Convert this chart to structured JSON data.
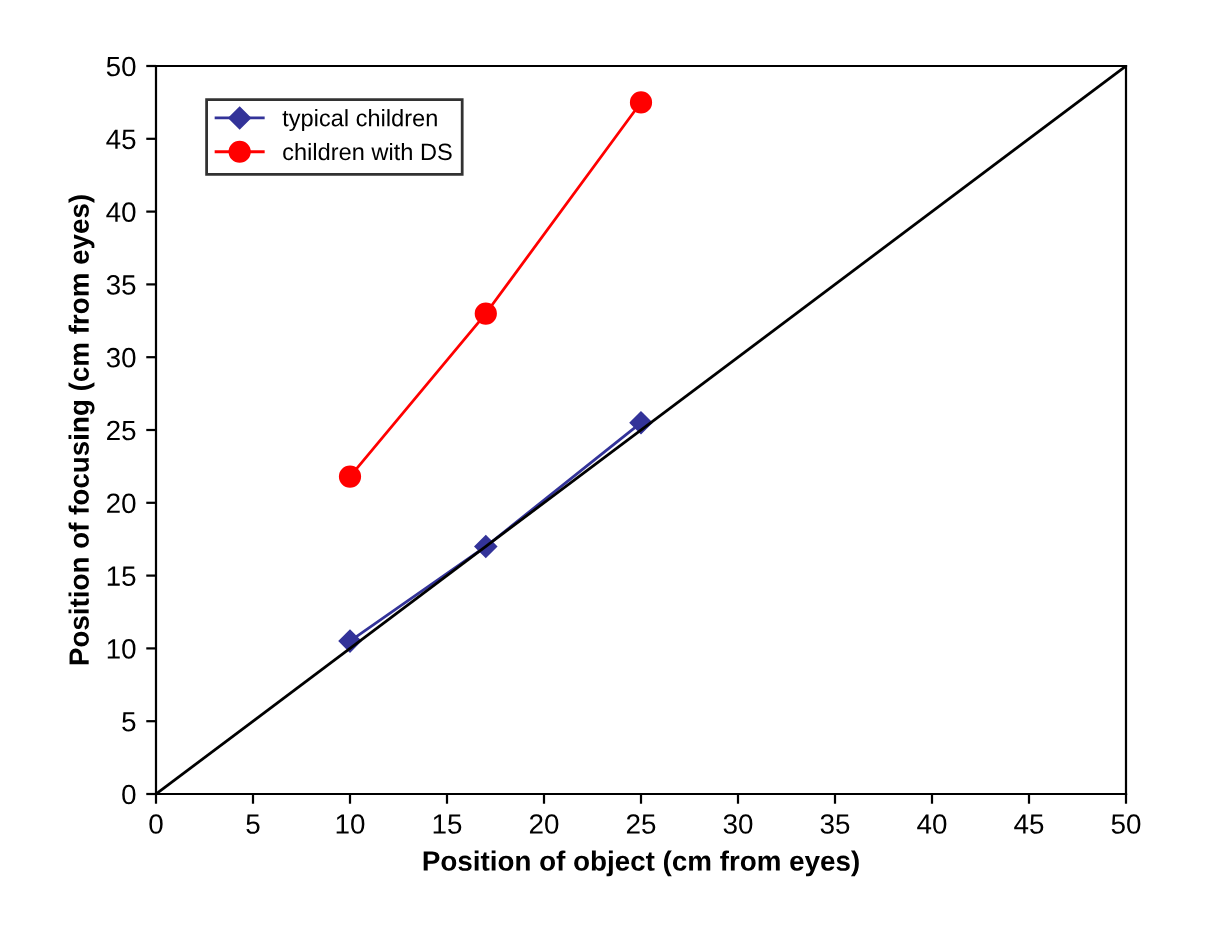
{
  "chart_data": {
    "type": "line",
    "xlabel": "Position of object (cm from eyes)",
    "ylabel": "Position of focusing (cm from eyes)",
    "x": [
      10,
      17,
      25
    ],
    "series": [
      {
        "name": "typical children",
        "color": "#333399",
        "values": [
          10.5,
          17,
          25.5
        ],
        "marker": "diamond"
      },
      {
        "name": "children with DS",
        "color": "#ff0000",
        "values": [
          21.8,
          33,
          47.5
        ],
        "marker": "circle"
      },
      {
        "color": "#000000",
        "x": [
          0,
          50
        ],
        "values": [
          0,
          50
        ],
        "marker": "none"
      }
    ],
    "xlim": [
      0,
      50
    ],
    "ylim": [
      0,
      50
    ],
    "xticks": [
      0,
      5,
      10,
      15,
      20,
      25,
      30,
      35,
      40,
      45,
      50
    ],
    "yticks": [
      0,
      5,
      10,
      15,
      20,
      25,
      30,
      35,
      40,
      45,
      50
    ],
    "grid": false,
    "legend": "top left",
    "line_style": "solid"
  }
}
